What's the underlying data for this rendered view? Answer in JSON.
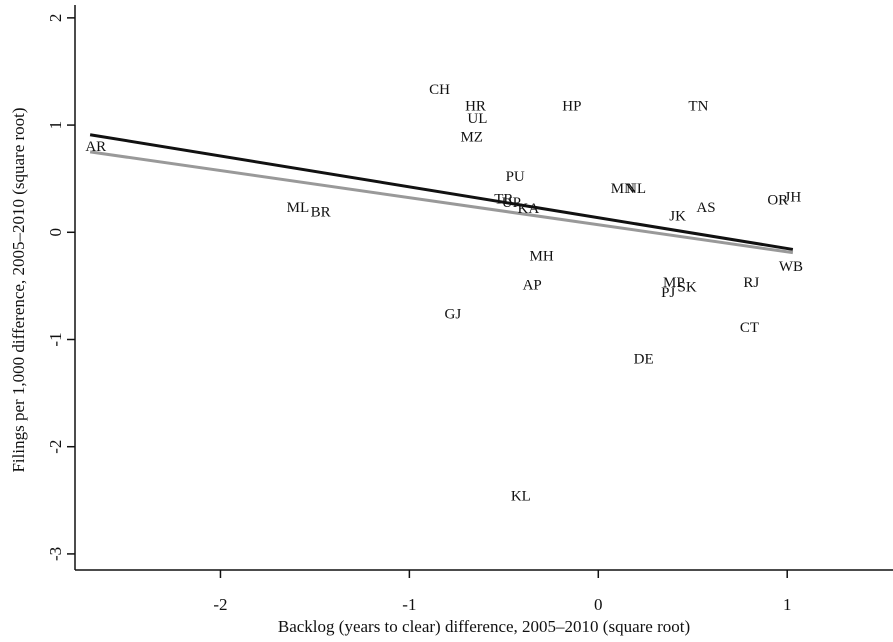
{
  "chart_data": {
    "type": "scatter",
    "xlabel": "Backlog (years to clear) difference, 2005–2010 (square root)",
    "ylabel": "Filings per 1,000 difference, 2005–2010 (square root)",
    "xlim": [
      -2.77,
      1.56
    ],
    "ylim": [
      -3.15,
      2.12
    ],
    "xticks": [
      -2,
      -1,
      0,
      1
    ],
    "yticks": [
      -3,
      -2,
      -1,
      0,
      1,
      2
    ],
    "point_labels": [
      "AR",
      "CH",
      "HR",
      "UL",
      "MZ",
      "HP",
      "TN",
      "PU",
      "MN",
      "NL",
      "ML",
      "BR",
      "TR",
      "UP",
      "KA",
      "JK",
      "AS",
      "OR",
      "JH",
      "MH",
      "AP",
      "MP",
      "PJ",
      "SK",
      "RJ",
      "WB",
      "GJ",
      "CT",
      "DE",
      "KL"
    ],
    "x": [
      -2.66,
      -0.84,
      -0.65,
      -0.64,
      -0.67,
      -0.14,
      0.53,
      -0.44,
      0.13,
      0.2,
      -1.59,
      -1.47,
      -0.5,
      -0.46,
      -0.37,
      0.42,
      0.57,
      0.95,
      1.03,
      -0.3,
      -0.35,
      0.4,
      0.37,
      0.47,
      0.81,
      1.02,
      -0.77,
      0.8,
      0.24,
      -0.41
    ],
    "values": [
      0.79,
      1.32,
      1.17,
      1.05,
      0.88,
      1.17,
      1.17,
      0.51,
      0.4,
      0.4,
      0.22,
      0.18,
      0.3,
      0.27,
      0.21,
      0.14,
      0.22,
      0.29,
      0.32,
      -0.23,
      -0.5,
      -0.48,
      -0.57,
      -0.52,
      -0.48,
      -0.33,
      -0.77,
      -0.9,
      -1.19,
      -2.47
    ],
    "lines": [
      {
        "color": "#111111",
        "x": [
          -2.69,
          1.03
        ],
        "values": [
          0.91,
          -0.16
        ]
      },
      {
        "color": "#999999",
        "x": [
          -2.69,
          1.03
        ],
        "values": [
          0.75,
          -0.19
        ]
      }
    ]
  }
}
